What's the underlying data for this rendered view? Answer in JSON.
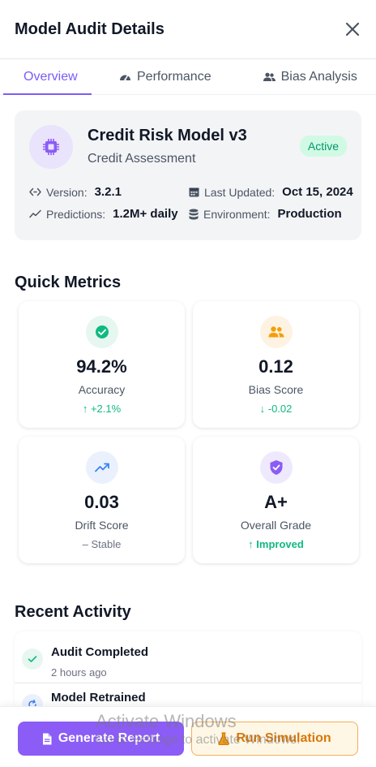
{
  "header": {
    "title": "Model Audit Details",
    "close_icon": "close-icon"
  },
  "tabs": [
    {
      "label": "Overview",
      "icon": "info-circle-icon",
      "active": true
    },
    {
      "label": "Performance",
      "icon": "gauge-icon",
      "active": false
    },
    {
      "label": "Bias Analysis",
      "icon": "users-icon",
      "active": false
    }
  ],
  "model": {
    "name": "Credit Risk Model v3",
    "subtitle": "Credit Assessment",
    "status": "Active",
    "icon": "chip-icon",
    "version_label": "Version:",
    "version": "3.2.1",
    "updated_label": "Last Updated:",
    "updated": "Oct 15, 2024",
    "predictions_label": "Predictions:",
    "predictions": "1.2M+ daily",
    "environment_label": "Environment:",
    "environment": "Production"
  },
  "quick_metrics": {
    "title": "Quick Metrics",
    "items": [
      {
        "value": "94.2%",
        "label": "Accuracy",
        "change": "+2.1%",
        "trend": "up",
        "icon": "check-circle-icon",
        "color": "#10b981",
        "bg": "#e6f7ef"
      },
      {
        "value": "0.12",
        "label": "Bias Score",
        "change": "-0.02",
        "trend": "down",
        "icon": "users-icon",
        "color": "#f59e0b",
        "bg": "#fef3e2"
      },
      {
        "value": "0.03",
        "label": "Drift Score",
        "change": "Stable",
        "trend": "flat",
        "icon": "trend-up-icon",
        "color": "#3b82f6",
        "bg": "#eaf1fd"
      },
      {
        "value": "A+",
        "label": "Overall Grade",
        "change": "Improved",
        "trend": "up",
        "icon": "shield-check-icon",
        "color": "#8b5cf6",
        "bg": "#efe9fd"
      }
    ]
  },
  "recent_activity": {
    "title": "Recent Activity",
    "items": [
      {
        "title": "Audit Completed",
        "time": "2 hours ago",
        "icon": "check-icon"
      },
      {
        "title": "Model Retrained",
        "time": "",
        "icon": "refresh-icon"
      }
    ]
  },
  "footer": {
    "report_label": "Generate Report",
    "simulation_label": "Run Simulation"
  },
  "watermark": {
    "line1": "Activate Windows",
    "line2": "Go to Settings to activate Windows."
  },
  "colors": {
    "accent": "#7c5cf5",
    "success": "#10b981",
    "warning": "#d97706",
    "panel": "#f3f4f6"
  }
}
